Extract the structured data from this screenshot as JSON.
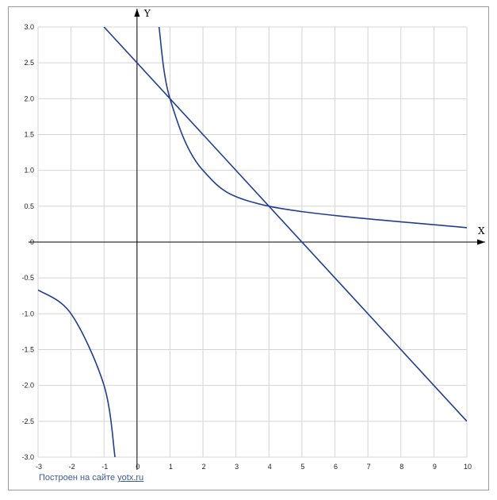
{
  "chart_data": {
    "type": "line",
    "title": "",
    "xlabel": "X",
    "ylabel": "Y",
    "xlim": [
      -3,
      10
    ],
    "ylim": [
      -3.0,
      3.0
    ],
    "x_ticks": [
      -3,
      -2,
      -1,
      0,
      1,
      2,
      3,
      4,
      5,
      6,
      7,
      8,
      9,
      10
    ],
    "y_ticks": [
      3.0,
      2.5,
      2.0,
      1.5,
      1.0,
      0.5,
      0,
      -0.5,
      -1.0,
      -1.5,
      -2.0,
      -2.5,
      -3.0
    ],
    "y_tick_labels": [
      "3.0",
      "2.5",
      "2.0",
      "1.5",
      "1.0",
      "0.5",
      "0",
      "-0.5",
      "-1.0",
      "-1.5",
      "-2.0",
      "-2.5",
      "-3.0"
    ],
    "grid": true,
    "series": [
      {
        "x": [
          -1,
          1,
          4,
          5,
          10
        ],
        "y": [
          3.0,
          2.0,
          0.5,
          0,
          -2.5
        ]
      },
      {
        "x": [
          0.667,
          1,
          2,
          4,
          10
        ],
        "y": [
          3.0,
          2.0,
          1.0,
          0.5,
          0.2
        ]
      },
      {
        "x": [
          -3,
          -2,
          -1,
          -0.667
        ],
        "y": [
          -0.667,
          -1.0,
          -2.0,
          -3.0
        ]
      }
    ],
    "line_color": "#1f3d99"
  },
  "credit": {
    "prefix": "Построен на сайте ",
    "link": "yotx.ru"
  }
}
